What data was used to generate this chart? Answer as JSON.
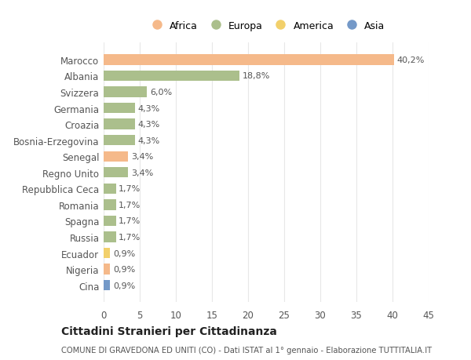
{
  "countries": [
    "Marocco",
    "Albania",
    "Svizzera",
    "Germania",
    "Croazia",
    "Bosnia-Erzegovina",
    "Senegal",
    "Regno Unito",
    "Repubblica Ceca",
    "Romania",
    "Spagna",
    "Russia",
    "Ecuador",
    "Nigeria",
    "Cina"
  ],
  "values": [
    40.2,
    18.8,
    6.0,
    4.3,
    4.3,
    4.3,
    3.4,
    3.4,
    1.7,
    1.7,
    1.7,
    1.7,
    0.9,
    0.9,
    0.9
  ],
  "continents": [
    "Africa",
    "Europa",
    "Europa",
    "Europa",
    "Europa",
    "Europa",
    "Africa",
    "Europa",
    "Europa",
    "Europa",
    "Europa",
    "Europa",
    "America",
    "Africa",
    "Asia"
  ],
  "colors": {
    "Africa": "#F5B98A",
    "Europa": "#ABBF8C",
    "America": "#F2D06B",
    "Asia": "#7499C8"
  },
  "legend_order": [
    "Africa",
    "Europa",
    "America",
    "Asia"
  ],
  "xlim": [
    0,
    45
  ],
  "xticks": [
    0,
    5,
    10,
    15,
    20,
    25,
    30,
    35,
    40,
    45
  ],
  "title": "Cittadini Stranieri per Cittadinanza",
  "subtitle": "COMUNE DI GRAVEDONA ED UNITI (CO) - Dati ISTAT al 1° gennaio - Elaborazione TUTTITALIA.IT",
  "bg_color": "#FFFFFF",
  "grid_color": "#E8E8E8",
  "bar_height": 0.65
}
